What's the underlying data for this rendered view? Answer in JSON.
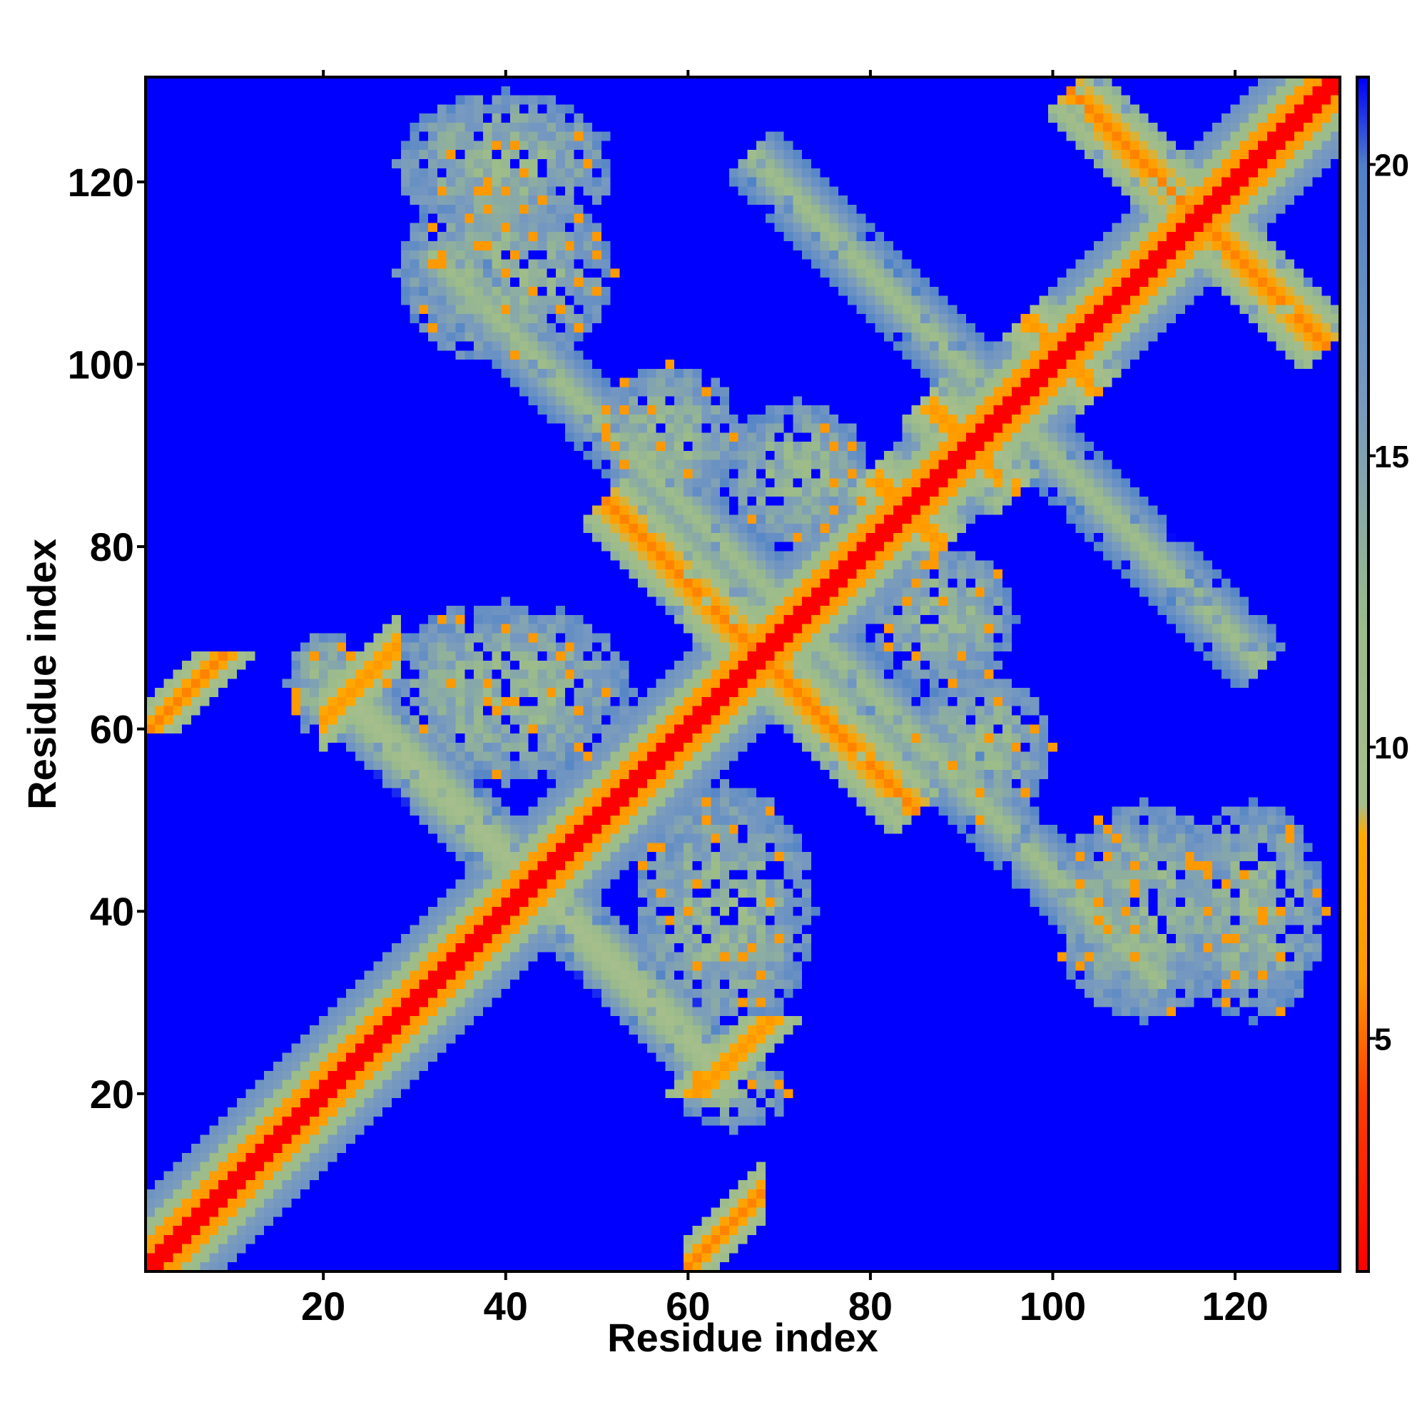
{
  "chart_data": {
    "type": "heatmap",
    "title": "",
    "xlabel": "Residue index",
    "ylabel": "Residue index",
    "xlim": [
      1,
      131
    ],
    "ylim": [
      1,
      131
    ],
    "x_ticks": [
      20,
      40,
      60,
      80,
      100,
      120
    ],
    "y_ticks": [
      20,
      40,
      60,
      80,
      100,
      120
    ],
    "n_residues": 131,
    "value_description": "distance between residues (color scale)",
    "colorbar": {
      "range": [
        1,
        21.5
      ],
      "ticks": [
        5,
        10,
        15,
        20
      ],
      "stops": [
        {
          "value": 1,
          "color": "#ff0000"
        },
        {
          "value": 4,
          "color": "#ff4000"
        },
        {
          "value": 6,
          "color": "#ff9900"
        },
        {
          "value": 8.5,
          "color": "#ffaa00"
        },
        {
          "value": 9,
          "color": "#a6be8c"
        },
        {
          "value": 12,
          "color": "#9cbc8a"
        },
        {
          "value": 16,
          "color": "#7799c0"
        },
        {
          "value": 20,
          "color": "#4f82c8"
        },
        {
          "value": 21.5,
          "color": "#0000ff"
        }
      ]
    },
    "background_color": "#0000ff",
    "diagonal_value": 1,
    "features": [
      {
        "type": "antiparallel",
        "center": [
          68,
          68
        ],
        "half_length": 17,
        "value": 5.5
      },
      {
        "type": "antiparallel",
        "center": [
          116,
          116
        ],
        "half_length": 14,
        "value": 5.5
      },
      {
        "type": "antiparallel",
        "center": [
          91,
          91
        ],
        "half_length": 5,
        "value": 6
      },
      {
        "type": "antiparallel",
        "center": [
          101,
          101
        ],
        "half_length": 4,
        "value": 6
      },
      {
        "type": "antiparallel",
        "center": [
          84,
          84
        ],
        "half_length": 4,
        "value": 6
      },
      {
        "type": "antiparallel",
        "center": [
          43,
          43
        ],
        "half_length": 20,
        "value": 9
      },
      {
        "type": "antiparallel",
        "center": [
          72,
          72
        ],
        "half_length": 40,
        "value": 11
      },
      {
        "type": "antiparallel",
        "center": [
          95,
          95
        ],
        "half_length": 28,
        "value": 11
      },
      {
        "type": "parallel",
        "i0": 60,
        "j0": 1,
        "length": 9,
        "value": 5.5
      },
      {
        "type": "parallel",
        "i0": 20,
        "j0": 61,
        "length": 9,
        "value": 6
      },
      {
        "type": "patch",
        "center": [
          40,
          64
        ],
        "radius": [
          14,
          10
        ],
        "value": 13
      },
      {
        "type": "patch",
        "center": [
          40,
          110
        ],
        "radius": [
          12,
          10
        ],
        "value": 13
      },
      {
        "type": "patch",
        "center": [
          40,
          122
        ],
        "radius": [
          12,
          8
        ],
        "value": 13
      },
      {
        "type": "patch",
        "center": [
          58,
          92
        ],
        "radius": [
          8,
          8
        ],
        "value": 13
      },
      {
        "type": "patch",
        "center": [
          110,
          40
        ],
        "radius": [
          10,
          12
        ],
        "value": 13
      },
      {
        "type": "patch",
        "center": [
          122,
          40
        ],
        "radius": [
          8,
          12
        ],
        "value": 13
      },
      {
        "type": "patch",
        "center": [
          64,
          40
        ],
        "radius": [
          10,
          14
        ],
        "value": 13
      },
      {
        "type": "patch",
        "center": [
          92,
          58
        ],
        "radius": [
          8,
          8
        ],
        "value": 13
      },
      {
        "type": "patch",
        "center": [
          88,
          72
        ],
        "radius": [
          8,
          8
        ],
        "value": 13
      },
      {
        "type": "patch",
        "center": [
          72,
          88
        ],
        "radius": [
          8,
          8
        ],
        "value": 13
      },
      {
        "type": "patch",
        "center": [
          20,
          65
        ],
        "radius": [
          4,
          6
        ],
        "value": 13
      },
      {
        "type": "patch",
        "center": [
          65,
          20
        ],
        "radius": [
          6,
          4
        ],
        "value": 13
      }
    ]
  }
}
